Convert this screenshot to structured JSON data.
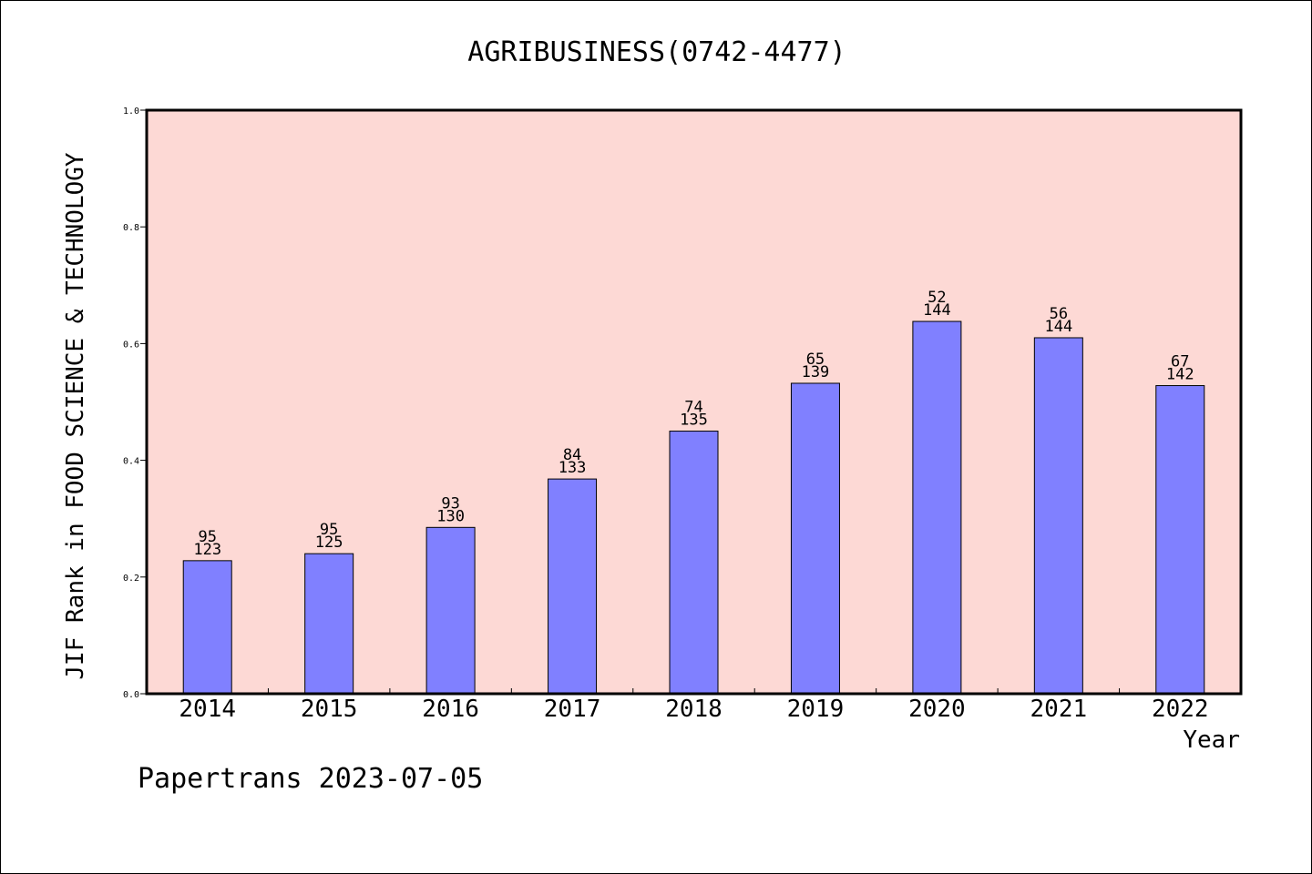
{
  "chart_data": {
    "type": "bar",
    "title": "AGRIBUSINESS(0742-4477)",
    "xlabel": "Year",
    "ylabel": "JIF Rank in FOOD SCIENCE & TECHNOLOGY",
    "ylim": [
      0,
      1.0
    ],
    "yticks": [
      "0.0",
      "0.2",
      "0.4",
      "0.6",
      "0.8",
      "1.0"
    ],
    "categories": [
      "2014",
      "2015",
      "2016",
      "2017",
      "2018",
      "2019",
      "2020",
      "2021",
      "2022"
    ],
    "values": [
      0.228,
      0.24,
      0.285,
      0.368,
      0.45,
      0.532,
      0.638,
      0.61,
      0.528
    ],
    "labels": [
      {
        "rank": "95",
        "total": "123"
      },
      {
        "rank": "95",
        "total": "125"
      },
      {
        "rank": "93",
        "total": "130"
      },
      {
        "rank": "84",
        "total": "133"
      },
      {
        "rank": "74",
        "total": "135"
      },
      {
        "rank": "65",
        "total": "139"
      },
      {
        "rank": "52",
        "total": "144"
      },
      {
        "rank": "56",
        "total": "144"
      },
      {
        "rank": "67",
        "total": "142"
      }
    ],
    "grid": false,
    "colors": {
      "plot_bg": "#fdd9d5",
      "bar": "#8080ff"
    }
  },
  "footer": "Papertrans 2023-07-05"
}
